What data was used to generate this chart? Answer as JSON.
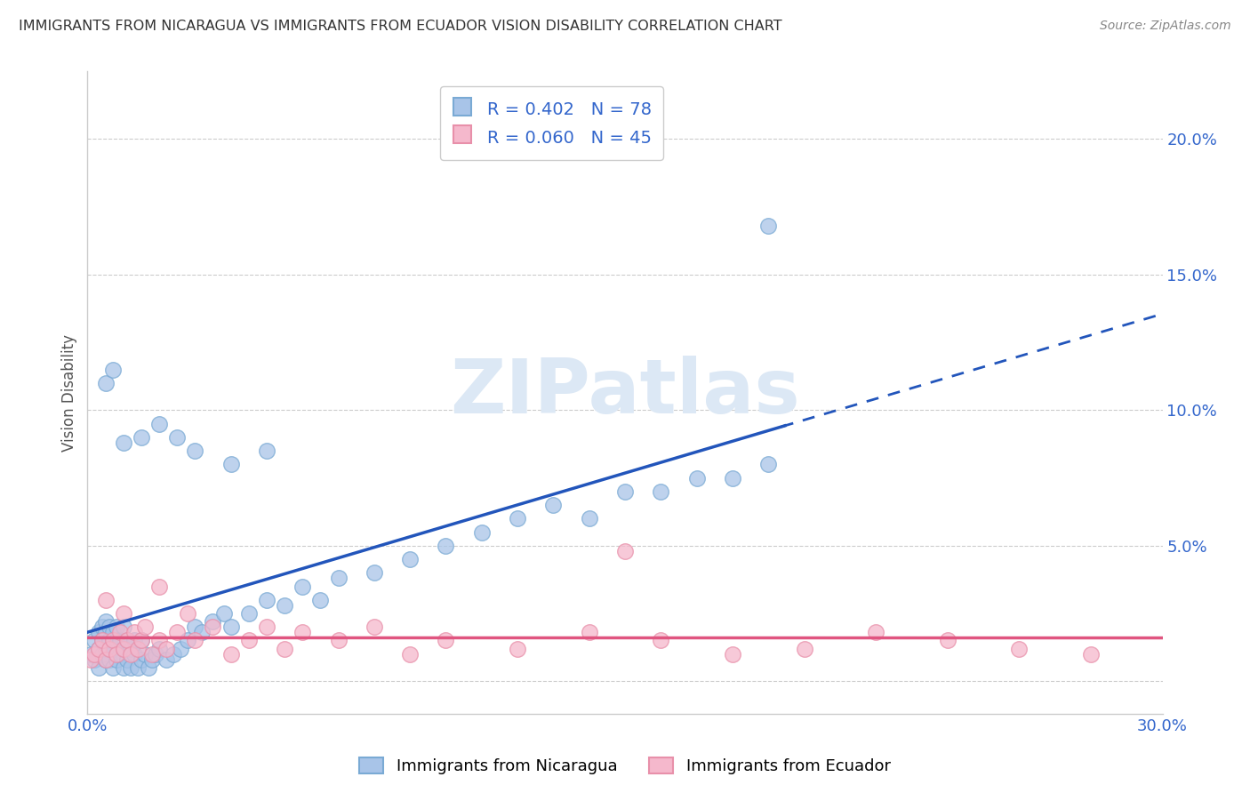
{
  "title": "IMMIGRANTS FROM NICARAGUA VS IMMIGRANTS FROM ECUADOR VISION DISABILITY CORRELATION CHART",
  "source": "Source: ZipAtlas.com",
  "ylabel": "Vision Disability",
  "xlim": [
    0.0,
    0.3
  ],
  "ylim": [
    -0.012,
    0.225
  ],
  "yticks": [
    0.0,
    0.05,
    0.1,
    0.15,
    0.2
  ],
  "ytick_labels": [
    "",
    "5.0%",
    "10.0%",
    "15.0%",
    "20.0%"
  ],
  "series1_label": "Immigrants from Nicaragua",
  "series1_R": 0.402,
  "series1_N": 78,
  "series1_color": "#a8c4e8",
  "series1_edge_color": "#7aaad4",
  "series1_line_color": "#2255bb",
  "series2_label": "Immigrants from Ecuador",
  "series2_R": 0.06,
  "series2_N": 45,
  "series2_color": "#f5b8cc",
  "series2_edge_color": "#e890aa",
  "series2_line_color": "#e05580",
  "watermark_text": "ZIPatlas",
  "watermark_color": "#dce8f5",
  "legend_R_color": "#3366cc",
  "legend_N_color": "#3366cc",
  "grid_color": "#cccccc",
  "tick_color": "#3366cc",
  "spine_color": "#cccccc",
  "nic_x": [
    0.001,
    0.002,
    0.002,
    0.003,
    0.003,
    0.003,
    0.004,
    0.004,
    0.004,
    0.005,
    0.005,
    0.005,
    0.005,
    0.006,
    0.006,
    0.006,
    0.007,
    0.007,
    0.007,
    0.008,
    0.008,
    0.008,
    0.009,
    0.009,
    0.01,
    0.01,
    0.01,
    0.011,
    0.011,
    0.012,
    0.012,
    0.013,
    0.013,
    0.014,
    0.015,
    0.015,
    0.016,
    0.017,
    0.018,
    0.019,
    0.02,
    0.022,
    0.024,
    0.026,
    0.028,
    0.03,
    0.032,
    0.035,
    0.038,
    0.04,
    0.045,
    0.05,
    0.055,
    0.06,
    0.065,
    0.07,
    0.08,
    0.09,
    0.1,
    0.11,
    0.12,
    0.13,
    0.14,
    0.15,
    0.16,
    0.17,
    0.18,
    0.19,
    0.005,
    0.007,
    0.01,
    0.015,
    0.02,
    0.025,
    0.03,
    0.04,
    0.05,
    0.19
  ],
  "nic_y": [
    0.01,
    0.008,
    0.015,
    0.012,
    0.018,
    0.005,
    0.01,
    0.015,
    0.02,
    0.008,
    0.012,
    0.018,
    0.022,
    0.008,
    0.015,
    0.02,
    0.005,
    0.012,
    0.018,
    0.008,
    0.015,
    0.02,
    0.01,
    0.015,
    0.005,
    0.012,
    0.02,
    0.008,
    0.015,
    0.005,
    0.012,
    0.01,
    0.015,
    0.005,
    0.008,
    0.015,
    0.01,
    0.005,
    0.008,
    0.01,
    0.012,
    0.008,
    0.01,
    0.012,
    0.015,
    0.02,
    0.018,
    0.022,
    0.025,
    0.02,
    0.025,
    0.03,
    0.028,
    0.035,
    0.03,
    0.038,
    0.04,
    0.045,
    0.05,
    0.055,
    0.06,
    0.065,
    0.06,
    0.07,
    0.07,
    0.075,
    0.075,
    0.08,
    0.11,
    0.115,
    0.088,
    0.09,
    0.095,
    0.09,
    0.085,
    0.08,
    0.085,
    0.168
  ],
  "ecu_x": [
    0.001,
    0.002,
    0.003,
    0.004,
    0.005,
    0.006,
    0.007,
    0.008,
    0.009,
    0.01,
    0.011,
    0.012,
    0.013,
    0.014,
    0.015,
    0.016,
    0.018,
    0.02,
    0.022,
    0.025,
    0.028,
    0.03,
    0.035,
    0.04,
    0.045,
    0.05,
    0.055,
    0.06,
    0.07,
    0.08,
    0.09,
    0.1,
    0.12,
    0.14,
    0.16,
    0.18,
    0.2,
    0.22,
    0.24,
    0.26,
    0.28,
    0.005,
    0.01,
    0.02,
    0.15
  ],
  "ecu_y": [
    0.008,
    0.01,
    0.012,
    0.015,
    0.008,
    0.012,
    0.015,
    0.01,
    0.018,
    0.012,
    0.015,
    0.01,
    0.018,
    0.012,
    0.015,
    0.02,
    0.01,
    0.015,
    0.012,
    0.018,
    0.025,
    0.015,
    0.02,
    0.01,
    0.015,
    0.02,
    0.012,
    0.018,
    0.015,
    0.02,
    0.01,
    0.015,
    0.012,
    0.018,
    0.015,
    0.01,
    0.012,
    0.018,
    0.015,
    0.012,
    0.01,
    0.03,
    0.025,
    0.035,
    0.048
  ]
}
